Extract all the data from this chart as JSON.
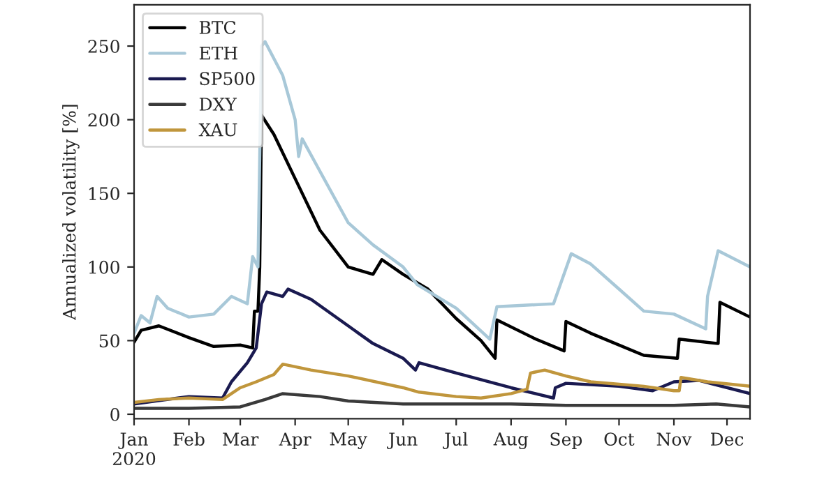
{
  "chart_data": {
    "type": "line",
    "ylabel": "Annualized volatility [%]",
    "legend": "top left",
    "grid": false,
    "xlim": [
      "2020-01-01",
      "2020-12-14"
    ],
    "xticks": [
      {
        "value": "2020-01-01",
        "label": "Jan\n2020"
      },
      {
        "value": "2020-02-01",
        "label": "Feb"
      },
      {
        "value": "2020-03-01",
        "label": "Mar"
      },
      {
        "value": "2020-04-01",
        "label": "Apr"
      },
      {
        "value": "2020-05-01",
        "label": "May"
      },
      {
        "value": "2020-06-01",
        "label": "Jun"
      },
      {
        "value": "2020-07-01",
        "label": "Jul"
      },
      {
        "value": "2020-08-01",
        "label": "Aug"
      },
      {
        "value": "2020-09-01",
        "label": "Sep"
      },
      {
        "value": "2020-10-01",
        "label": "Oct"
      },
      {
        "value": "2020-11-01",
        "label": "Nov"
      },
      {
        "value": "2020-12-01",
        "label": "Dec"
      }
    ],
    "ylim": [
      -3,
      278
    ],
    "yticks": [
      0,
      50,
      100,
      150,
      200,
      250
    ],
    "series": [
      {
        "name": "BTC",
        "color": "#000000",
        "x": [
          "2020-01-01",
          "2020-01-05",
          "2020-01-15",
          "2020-02-01",
          "2020-02-15",
          "2020-03-01",
          "2020-03-08",
          "2020-03-09",
          "2020-03-11",
          "2020-03-12",
          "2020-03-13",
          "2020-03-20",
          "2020-04-01",
          "2020-04-15",
          "2020-05-01",
          "2020-05-15",
          "2020-05-20",
          "2020-06-01",
          "2020-06-15",
          "2020-07-01",
          "2020-07-15",
          "2020-07-23",
          "2020-07-24",
          "2020-08-15",
          "2020-08-31",
          "2020-09-01",
          "2020-09-15",
          "2020-10-15",
          "2020-11-03",
          "2020-11-04",
          "2020-11-26",
          "2020-11-27",
          "2020-12-14"
        ],
        "values": [
          49,
          57,
          60,
          52,
          46,
          47,
          45,
          70,
          70,
          100,
          203,
          190,
          160,
          125,
          100,
          95,
          105,
          95,
          85,
          65,
          50,
          38,
          64,
          51,
          43,
          63,
          55,
          40,
          38,
          51,
          48,
          76,
          66
        ]
      },
      {
        "name": "ETH",
        "color": "#a8c8d8",
        "x": [
          "2020-01-01",
          "2020-01-05",
          "2020-01-10",
          "2020-01-14",
          "2020-01-20",
          "2020-02-01",
          "2020-02-15",
          "2020-02-25",
          "2020-03-05",
          "2020-03-08",
          "2020-03-11",
          "2020-03-13",
          "2020-03-15",
          "2020-03-25",
          "2020-04-01",
          "2020-04-03",
          "2020-04-05",
          "2020-04-15",
          "2020-05-01",
          "2020-05-15",
          "2020-06-01",
          "2020-06-09",
          "2020-07-01",
          "2020-07-20",
          "2020-07-24",
          "2020-08-25",
          "2020-09-04",
          "2020-09-15",
          "2020-10-01",
          "2020-10-15",
          "2020-11-01",
          "2020-11-19",
          "2020-11-20",
          "2020-11-26",
          "2020-12-14"
        ],
        "values": [
          55,
          67,
          62,
          80,
          72,
          66,
          68,
          80,
          75,
          107,
          100,
          250,
          253,
          230,
          200,
          175,
          187,
          165,
          130,
          115,
          100,
          88,
          72,
          51,
          73,
          75,
          109,
          102,
          85,
          70,
          68,
          58,
          80,
          111,
          100
        ]
      },
      {
        "name": "SP500",
        "color": "#1a1a50",
        "x": [
          "2020-01-01",
          "2020-02-01",
          "2020-02-20",
          "2020-02-25",
          "2020-03-05",
          "2020-03-10",
          "2020-03-13",
          "2020-03-16",
          "2020-03-25",
          "2020-03-28",
          "2020-04-10",
          "2020-05-01",
          "2020-05-15",
          "2020-06-01",
          "2020-06-08",
          "2020-06-10",
          "2020-07-01",
          "2020-08-01",
          "2020-08-25",
          "2020-08-26",
          "2020-09-01",
          "2020-10-01",
          "2020-10-20",
          "2020-11-01",
          "2020-11-15",
          "2020-12-14"
        ],
        "values": [
          7,
          12,
          11,
          22,
          35,
          45,
          75,
          83,
          80,
          85,
          78,
          60,
          48,
          38,
          30,
          35,
          28,
          18,
          11,
          18,
          21,
          19,
          16,
          22,
          23,
          14
        ]
      },
      {
        "name": "DXY",
        "color": "#3a3a3a",
        "x": [
          "2020-01-01",
          "2020-02-01",
          "2020-03-01",
          "2020-03-15",
          "2020-03-25",
          "2020-04-15",
          "2020-05-01",
          "2020-06-01",
          "2020-07-01",
          "2020-08-01",
          "2020-09-01",
          "2020-10-01",
          "2020-11-01",
          "2020-11-25",
          "2020-12-14"
        ],
        "values": [
          4,
          4,
          5,
          10,
          14,
          12,
          9,
          7,
          7,
          7,
          6,
          6,
          6,
          7,
          5
        ]
      },
      {
        "name": "XAU",
        "color": "#c0963c",
        "x": [
          "2020-01-01",
          "2020-01-15",
          "2020-02-01",
          "2020-02-20",
          "2020-03-01",
          "2020-03-10",
          "2020-03-20",
          "2020-03-25",
          "2020-04-10",
          "2020-05-01",
          "2020-06-01",
          "2020-06-10",
          "2020-07-01",
          "2020-07-15",
          "2020-08-01",
          "2020-08-10",
          "2020-08-12",
          "2020-08-20",
          "2020-09-01",
          "2020-09-15",
          "2020-10-15",
          "2020-11-01",
          "2020-11-04",
          "2020-11-05",
          "2020-11-20",
          "2020-12-14"
        ],
        "values": [
          8,
          10,
          11,
          10,
          18,
          22,
          27,
          34,
          30,
          26,
          18,
          15,
          12,
          11,
          14,
          17,
          28,
          30,
          26,
          22,
          19,
          16,
          16,
          25,
          22,
          19
        ]
      }
    ]
  }
}
